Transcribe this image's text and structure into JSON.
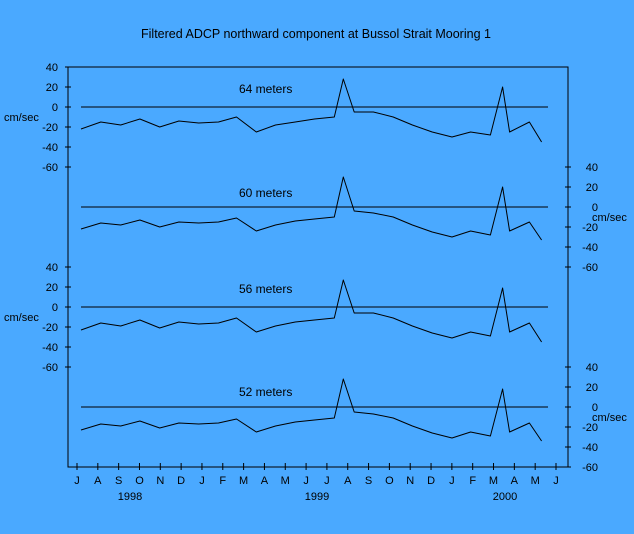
{
  "chart_data": {
    "type": "line",
    "title": "Filtered ADCP northward component at Bussol Strait Mooring 1",
    "ylabel": "cm/sec",
    "x_range": [
      "1998-07-01",
      "2000-06-30"
    ],
    "x_tick_labels": [
      "J",
      "A",
      "S",
      "O",
      "N",
      "D",
      "J",
      "F",
      "M",
      "A",
      "M",
      "J",
      "J",
      "A",
      "S",
      "O",
      "N",
      "D",
      "J",
      "F",
      "M",
      "A",
      "M",
      "J"
    ],
    "x_year_labels": [
      "1998",
      "1999",
      "2000"
    ],
    "ylim": [
      -60,
      40
    ],
    "y_ticks": [
      "40",
      "20",
      "0",
      "-20",
      "-40",
      "-60"
    ],
    "grid": false,
    "series": [
      {
        "name": "64 meters",
        "axis": "left",
        "x": [
          "1998-07-01",
          "1998-08-01",
          "1998-09-01",
          "1998-10-01",
          "1998-11-01",
          "1998-12-01",
          "1999-01-01",
          "1999-02-01",
          "1999-03-01",
          "1999-04-01",
          "1999-05-01",
          "1999-06-01",
          "1999-07-01",
          "1999-08-01",
          "1999-08-15",
          "1999-09-01",
          "1999-10-01",
          "1999-11-01",
          "1999-12-01",
          "2000-01-01",
          "2000-02-01",
          "2000-03-01",
          "2000-04-01",
          "2000-04-20",
          "2000-05-01",
          "2000-06-01",
          "2000-06-20"
        ],
        "values": [
          -22,
          -15,
          -18,
          -12,
          -20,
          -14,
          -16,
          -15,
          -10,
          -25,
          -18,
          -15,
          -12,
          -10,
          28,
          -5,
          -5,
          -10,
          -18,
          -25,
          -30,
          -25,
          -28,
          20,
          -25,
          -15,
          -35
        ]
      },
      {
        "name": "60 meters",
        "axis": "right",
        "x": [
          "1998-07-01",
          "1998-08-01",
          "1998-09-01",
          "1998-10-01",
          "1998-11-01",
          "1998-12-01",
          "1999-01-01",
          "1999-02-01",
          "1999-03-01",
          "1999-04-01",
          "1999-05-01",
          "1999-06-01",
          "1999-07-01",
          "1999-08-01",
          "1999-08-15",
          "1999-09-01",
          "1999-10-01",
          "1999-11-01",
          "1999-12-01",
          "2000-01-01",
          "2000-02-01",
          "2000-03-01",
          "2000-04-01",
          "2000-04-20",
          "2000-05-01",
          "2000-06-01",
          "2000-06-20"
        ],
        "values": [
          -22,
          -16,
          -18,
          -13,
          -20,
          -15,
          -16,
          -15,
          -11,
          -24,
          -18,
          -14,
          -12,
          -10,
          30,
          -4,
          -6,
          -10,
          -18,
          -25,
          -30,
          -24,
          -28,
          20,
          -24,
          -15,
          -33
        ]
      },
      {
        "name": "56 meters",
        "axis": "left",
        "x": [
          "1998-07-01",
          "1998-08-01",
          "1998-09-01",
          "1998-10-01",
          "1998-11-01",
          "1998-12-01",
          "1999-01-01",
          "1999-02-01",
          "1999-03-01",
          "1999-04-01",
          "1999-05-01",
          "1999-06-01",
          "1999-07-01",
          "1999-08-01",
          "1999-08-15",
          "1999-09-01",
          "1999-10-01",
          "1999-11-01",
          "1999-12-01",
          "2000-01-01",
          "2000-02-01",
          "2000-03-01",
          "2000-04-01",
          "2000-04-20",
          "2000-05-01",
          "2000-06-01",
          "2000-06-20"
        ],
        "values": [
          -23,
          -16,
          -19,
          -13,
          -21,
          -15,
          -17,
          -16,
          -11,
          -25,
          -19,
          -15,
          -13,
          -11,
          27,
          -6,
          -6,
          -11,
          -19,
          -26,
          -31,
          -25,
          -29,
          19,
          -25,
          -16,
          -35
        ]
      },
      {
        "name": "52 meters",
        "axis": "right",
        "x": [
          "1998-07-01",
          "1998-08-01",
          "1998-09-01",
          "1998-10-01",
          "1998-11-01",
          "1998-12-01",
          "1999-01-01",
          "1999-02-01",
          "1999-03-01",
          "1999-04-01",
          "1999-05-01",
          "1999-06-01",
          "1999-07-01",
          "1999-08-01",
          "1999-08-15",
          "1999-09-01",
          "1999-10-01",
          "1999-11-01",
          "1999-12-01",
          "2000-01-01",
          "2000-02-01",
          "2000-03-01",
          "2000-04-01",
          "2000-04-20",
          "2000-05-01",
          "2000-06-01",
          "2000-06-20"
        ],
        "values": [
          -23,
          -17,
          -19,
          -14,
          -21,
          -16,
          -17,
          -16,
          -12,
          -25,
          -19,
          -15,
          -13,
          -11,
          28,
          -5,
          -7,
          -11,
          -19,
          -26,
          -31,
          -25,
          -29,
          18,
          -25,
          -16,
          -34
        ]
      }
    ]
  }
}
